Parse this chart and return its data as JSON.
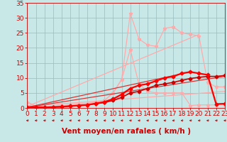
{
  "background_color": "#c8e8e8",
  "grid_color": "#99bbbb",
  "xlabel": "Vent moyen/en rafales ( km/h )",
  "xlabel_color": "#cc0000",
  "xlabel_fontsize": 7.5,
  "tick_color": "#cc0000",
  "tick_fontsize": 6.5,
  "xlim": [
    0,
    23
  ],
  "ylim": [
    0,
    35
  ],
  "yticks": [
    0,
    5,
    10,
    15,
    20,
    25,
    30,
    35
  ],
  "xticks": [
    0,
    1,
    2,
    3,
    4,
    5,
    6,
    7,
    8,
    9,
    10,
    11,
    12,
    13,
    14,
    15,
    16,
    17,
    18,
    19,
    20,
    21,
    22,
    23
  ],
  "series": [
    {
      "name": "light_diag_lower",
      "x": [
        0,
        23
      ],
      "y": [
        0.5,
        5.5
      ],
      "color": "#ffaaaa",
      "linewidth": 0.9,
      "marker": "None",
      "markersize": 0
    },
    {
      "name": "light_diag_upper",
      "x": [
        0,
        20
      ],
      "y": [
        0.5,
        24.5
      ],
      "color": "#ffaaaa",
      "linewidth": 0.9,
      "marker": "None",
      "markersize": 0
    },
    {
      "name": "light_peaked_lower",
      "x": [
        0,
        1,
        2,
        3,
        4,
        5,
        6,
        7,
        8,
        9,
        10,
        11,
        12,
        13,
        14,
        15,
        16,
        17,
        18,
        19,
        20,
        21,
        22,
        23
      ],
      "y": [
        2.0,
        0.5,
        0.3,
        0.5,
        0.7,
        1.0,
        1.3,
        1.5,
        2.0,
        2.5,
        5.0,
        9.5,
        19.5,
        8.0,
        5.5,
        5.0,
        5.0,
        5.0,
        5.0,
        0.8,
        1.0,
        1.0,
        1.0,
        1.0
      ],
      "color": "#ffaaaa",
      "linewidth": 0.9,
      "marker": "*",
      "markersize": 3.5
    },
    {
      "name": "light_peaked_upper",
      "x": [
        0,
        1,
        2,
        3,
        4,
        5,
        6,
        7,
        8,
        9,
        10,
        11,
        12,
        13,
        14,
        15,
        16,
        17,
        18,
        19,
        20,
        21,
        22,
        23
      ],
      "y": [
        2.0,
        0.5,
        0.3,
        0.5,
        0.7,
        1.0,
        1.3,
        1.5,
        2.0,
        2.5,
        5.0,
        9.5,
        31.5,
        23.0,
        21.0,
        20.5,
        26.5,
        27.0,
        25.0,
        24.5,
        24.0,
        8.5,
        7.0,
        7.0
      ],
      "color": "#ffaaaa",
      "linewidth": 0.9,
      "marker": "*",
      "markersize": 3.5
    },
    {
      "name": "dark_diag_lower",
      "x": [
        0,
        23
      ],
      "y": [
        0.2,
        10.5
      ],
      "color": "#dd3333",
      "linewidth": 0.9,
      "marker": "None",
      "markersize": 0
    },
    {
      "name": "dark_diag_upper",
      "x": [
        0,
        19
      ],
      "y": [
        0.2,
        12.0
      ],
      "color": "#dd3333",
      "linewidth": 0.9,
      "marker": "None",
      "markersize": 0
    },
    {
      "name": "dark_peaked_lower",
      "x": [
        0,
        1,
        2,
        3,
        4,
        5,
        6,
        7,
        8,
        9,
        10,
        11,
        12,
        13,
        14,
        15,
        16,
        17,
        18,
        19,
        20,
        21,
        22,
        23
      ],
      "y": [
        0.3,
        0.2,
        0.2,
        0.3,
        0.4,
        0.6,
        0.8,
        1.0,
        1.4,
        1.8,
        2.5,
        3.5,
        5.0,
        5.5,
        6.5,
        7.5,
        8.0,
        8.5,
        9.2,
        9.8,
        10.2,
        10.5,
        10.5,
        10.8
      ],
      "color": "#cc0000",
      "linewidth": 1.2,
      "marker": "D",
      "markersize": 2.5
    },
    {
      "name": "dark_peaked_upper",
      "x": [
        0,
        1,
        2,
        3,
        4,
        5,
        6,
        7,
        8,
        9,
        10,
        11,
        12,
        13,
        14,
        15,
        16,
        17,
        18,
        19,
        20,
        21,
        22,
        23
      ],
      "y": [
        0.3,
        0.2,
        0.2,
        0.3,
        0.4,
        0.6,
        0.8,
        1.0,
        1.5,
        2.0,
        3.0,
        4.5,
        6.5,
        7.5,
        8.0,
        9.0,
        10.0,
        10.5,
        11.5,
        12.0,
        11.5,
        11.0,
        1.3,
        1.4
      ],
      "color": "#ff0000",
      "linewidth": 1.6,
      "marker": "D",
      "markersize": 2.5
    }
  ],
  "arrow_color": "#cc0000"
}
